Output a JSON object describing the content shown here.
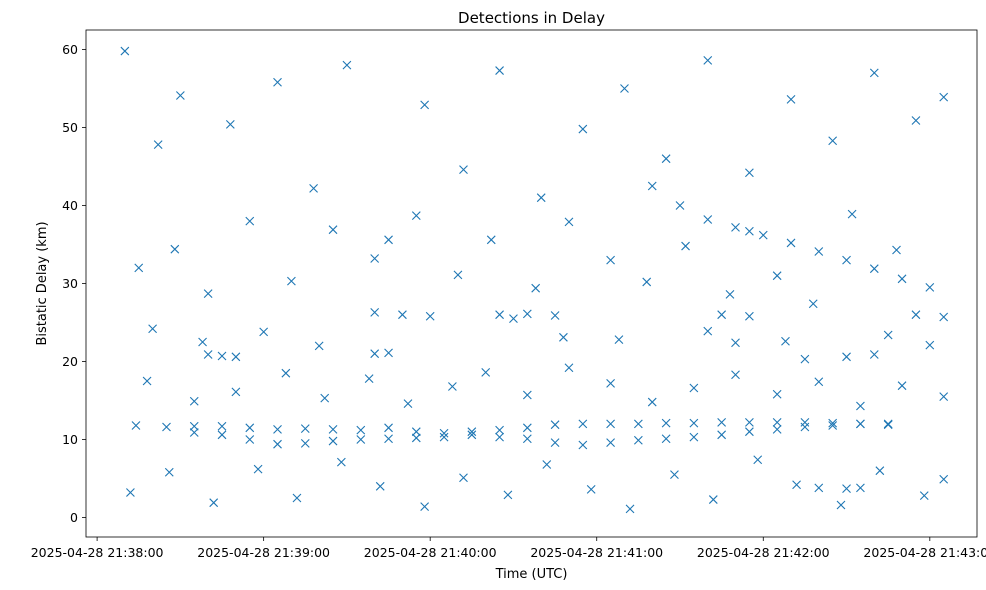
{
  "chart_data": {
    "type": "scatter",
    "title": "Detections in Delay",
    "xlabel": "Time (UTC)",
    "ylabel": "Bistatic Delay (km)",
    "x_ticks": [
      "2025-04-28 21:38:00",
      "2025-04-28 21:39:00",
      "2025-04-28 21:40:00",
      "2025-04-28 21:41:00",
      "2025-04-28 21:42:00",
      "2025-04-28 21:43:00"
    ],
    "y_ticks": [
      "0",
      "10",
      "20",
      "30",
      "40",
      "50",
      "60"
    ],
    "xlim": [
      "2025-04-28 21:37:56",
      "2025-04-28 21:43:17"
    ],
    "ylim": [
      -2.5,
      62.5
    ],
    "marker": "x",
    "color": "#1f77b4",
    "grid": false,
    "series": [
      {
        "name": "",
        "points": [
          [
            "21:38:14",
            11.8
          ],
          [
            "21:38:25",
            11.6
          ],
          [
            "21:38:35",
            11.7
          ],
          [
            "21:38:45",
            11.7
          ],
          [
            "21:38:55",
            11.5
          ],
          [
            "21:39:05",
            11.3
          ],
          [
            "21:39:15",
            11.4
          ],
          [
            "21:39:25",
            11.3
          ],
          [
            "21:39:35",
            11.2
          ],
          [
            "21:39:45",
            11.5
          ],
          [
            "21:39:55",
            11.0
          ],
          [
            "21:40:05",
            10.8
          ],
          [
            "21:40:15",
            11.0
          ],
          [
            "21:40:25",
            11.2
          ],
          [
            "21:40:35",
            11.5
          ],
          [
            "21:40:45",
            11.9
          ],
          [
            "21:40:55",
            12.0
          ],
          [
            "21:41:05",
            12.0
          ],
          [
            "21:41:15",
            12.0
          ],
          [
            "21:41:25",
            12.1
          ],
          [
            "21:41:35",
            12.1
          ],
          [
            "21:41:45",
            12.2
          ],
          [
            "21:41:55",
            12.2
          ],
          [
            "21:42:05",
            12.2
          ],
          [
            "21:42:15",
            12.2
          ],
          [
            "21:42:25",
            12.1
          ],
          [
            "21:42:35",
            12.0
          ],
          [
            "21:42:45",
            12.0
          ],
          [
            "21:38:35",
            10.9
          ],
          [
            "21:38:45",
            10.6
          ],
          [
            "21:38:55",
            10.0
          ],
          [
            "21:39:05",
            9.4
          ],
          [
            "21:39:15",
            9.5
          ],
          [
            "21:39:25",
            9.8
          ],
          [
            "21:39:35",
            10.0
          ],
          [
            "21:39:45",
            10.1
          ],
          [
            "21:39:55",
            10.2
          ],
          [
            "21:40:05",
            10.3
          ],
          [
            "21:40:15",
            10.6
          ],
          [
            "21:40:25",
            10.3
          ],
          [
            "21:40:35",
            10.1
          ],
          [
            "21:40:45",
            9.6
          ],
          [
            "21:40:55",
            9.3
          ],
          [
            "21:41:05",
            9.6
          ],
          [
            "21:41:15",
            9.9
          ],
          [
            "21:41:25",
            10.1
          ],
          [
            "21:41:35",
            10.3
          ],
          [
            "21:41:45",
            10.6
          ],
          [
            "21:41:55",
            11.0
          ],
          [
            "21:42:05",
            11.3
          ],
          [
            "21:42:15",
            11.6
          ],
          [
            "21:42:25",
            11.8
          ],
          [
            "21:42:35",
            12.0
          ],
          [
            "21:42:45",
            11.9
          ],
          [
            "21:38:40",
            20.9
          ],
          [
            "21:38:45",
            20.7
          ],
          [
            "21:38:50",
            20.6
          ],
          [
            "21:42:15",
            20.3
          ],
          [
            "21:42:30",
            20.6
          ],
          [
            "21:42:40",
            20.9
          ],
          [
            "21:39:40",
            26.3
          ],
          [
            "21:39:50",
            26.0
          ],
          [
            "21:40:00",
            25.8
          ],
          [
            "21:40:25",
            26.0
          ],
          [
            "21:40:35",
            26.1
          ],
          [
            "21:40:45",
            25.9
          ],
          [
            "21:41:45",
            26.0
          ],
          [
            "21:41:55",
            25.8
          ],
          [
            "21:42:55",
            26.0
          ],
          [
            "21:43:05",
            25.7
          ],
          [
            "21:42:00",
            36.2
          ],
          [
            "21:42:10",
            35.2
          ],
          [
            "21:42:20",
            34.1
          ],
          [
            "21:42:30",
            33.0
          ],
          [
            "21:42:40",
            31.9
          ],
          [
            "21:42:50",
            30.6
          ],
          [
            "21:43:00",
            29.5
          ],
          [
            "21:41:20",
            42.5
          ],
          [
            "21:41:30",
            40.0
          ],
          [
            "21:41:40",
            38.2
          ],
          [
            "21:41:50",
            37.2
          ],
          [
            "21:41:55",
            36.7
          ],
          [
            "21:42:35",
            3.8
          ],
          [
            "21:42:30",
            3.7
          ],
          [
            "21:42:20",
            3.8
          ],
          [
            "21:39:40",
            21.0
          ],
          [
            "21:39:45",
            21.1
          ],
          [
            "21:40:30",
            25.5
          ],
          [
            "21:41:40",
            23.9
          ],
          [
            "21:41:50",
            22.4
          ],
          [
            "21:38:10",
            59.8
          ],
          [
            "21:38:22",
            47.8
          ],
          [
            "21:38:30",
            54.1
          ],
          [
            "21:38:48",
            50.4
          ],
          [
            "21:39:05",
            55.8
          ],
          [
            "21:39:18",
            42.2
          ],
          [
            "21:39:30",
            58.0
          ],
          [
            "21:39:45",
            35.6
          ],
          [
            "21:39:58",
            52.9
          ],
          [
            "21:40:12",
            44.6
          ],
          [
            "21:40:25",
            57.3
          ],
          [
            "21:40:40",
            41.0
          ],
          [
            "21:40:55",
            49.8
          ],
          [
            "21:41:10",
            55.0
          ],
          [
            "21:41:25",
            46.0
          ],
          [
            "21:41:40",
            58.6
          ],
          [
            "21:41:55",
            44.2
          ],
          [
            "21:42:10",
            53.6
          ],
          [
            "21:42:25",
            48.3
          ],
          [
            "21:42:40",
            57.0
          ],
          [
            "21:42:55",
            50.9
          ],
          [
            "21:43:05",
            53.9
          ],
          [
            "21:38:15",
            32.0
          ],
          [
            "21:38:28",
            34.4
          ],
          [
            "21:38:40",
            28.7
          ],
          [
            "21:38:55",
            38.0
          ],
          [
            "21:39:10",
            30.3
          ],
          [
            "21:39:25",
            36.9
          ],
          [
            "21:39:40",
            33.2
          ],
          [
            "21:39:55",
            38.7
          ],
          [
            "21:40:10",
            31.1
          ],
          [
            "21:40:22",
            35.6
          ],
          [
            "21:40:38",
            29.4
          ],
          [
            "21:40:50",
            37.9
          ],
          [
            "21:41:05",
            33.0
          ],
          [
            "21:41:18",
            30.2
          ],
          [
            "21:41:32",
            34.8
          ],
          [
            "21:41:48",
            28.6
          ],
          [
            "21:42:05",
            31.0
          ],
          [
            "21:42:18",
            27.4
          ],
          [
            "21:42:32",
            38.9
          ],
          [
            "21:42:48",
            34.3
          ],
          [
            "21:38:18",
            17.5
          ],
          [
            "21:38:35",
            14.9
          ],
          [
            "21:38:50",
            16.1
          ],
          [
            "21:39:08",
            18.5
          ],
          [
            "21:39:22",
            15.3
          ],
          [
            "21:39:38",
            17.8
          ],
          [
            "21:39:52",
            14.6
          ],
          [
            "21:40:08",
            16.8
          ],
          [
            "21:40:20",
            18.6
          ],
          [
            "21:40:35",
            15.7
          ],
          [
            "21:40:50",
            19.2
          ],
          [
            "21:41:05",
            17.2
          ],
          [
            "21:41:20",
            14.8
          ],
          [
            "21:41:35",
            16.6
          ],
          [
            "21:41:50",
            18.3
          ],
          [
            "21:42:05",
            15.8
          ],
          [
            "21:42:20",
            17.4
          ],
          [
            "21:42:35",
            14.3
          ],
          [
            "21:42:50",
            16.9
          ],
          [
            "21:43:05",
            15.5
          ],
          [
            "21:38:12",
            3.2
          ],
          [
            "21:38:26",
            5.8
          ],
          [
            "21:38:42",
            1.9
          ],
          [
            "21:38:58",
            6.2
          ],
          [
            "21:39:12",
            2.5
          ],
          [
            "21:39:28",
            7.1
          ],
          [
            "21:39:42",
            4.0
          ],
          [
            "21:39:58",
            1.4
          ],
          [
            "21:40:12",
            5.1
          ],
          [
            "21:40:28",
            2.9
          ],
          [
            "21:40:42",
            6.8
          ],
          [
            "21:40:58",
            3.6
          ],
          [
            "21:41:12",
            1.1
          ],
          [
            "21:41:28",
            5.5
          ],
          [
            "21:41:42",
            2.3
          ],
          [
            "21:41:58",
            7.4
          ],
          [
            "21:42:12",
            4.2
          ],
          [
            "21:42:28",
            1.6
          ],
          [
            "21:42:42",
            6.0
          ],
          [
            "21:42:58",
            2.8
          ],
          [
            "21:43:05",
            4.9
          ],
          [
            "21:38:20",
            24.2
          ],
          [
            "21:38:38",
            22.5
          ],
          [
            "21:39:00",
            23.8
          ],
          [
            "21:39:20",
            22.0
          ],
          [
            "21:40:48",
            23.1
          ],
          [
            "21:41:08",
            22.8
          ],
          [
            "21:42:08",
            22.6
          ],
          [
            "21:42:45",
            23.4
          ],
          [
            "21:43:00",
            22.1
          ]
        ]
      }
    ]
  }
}
